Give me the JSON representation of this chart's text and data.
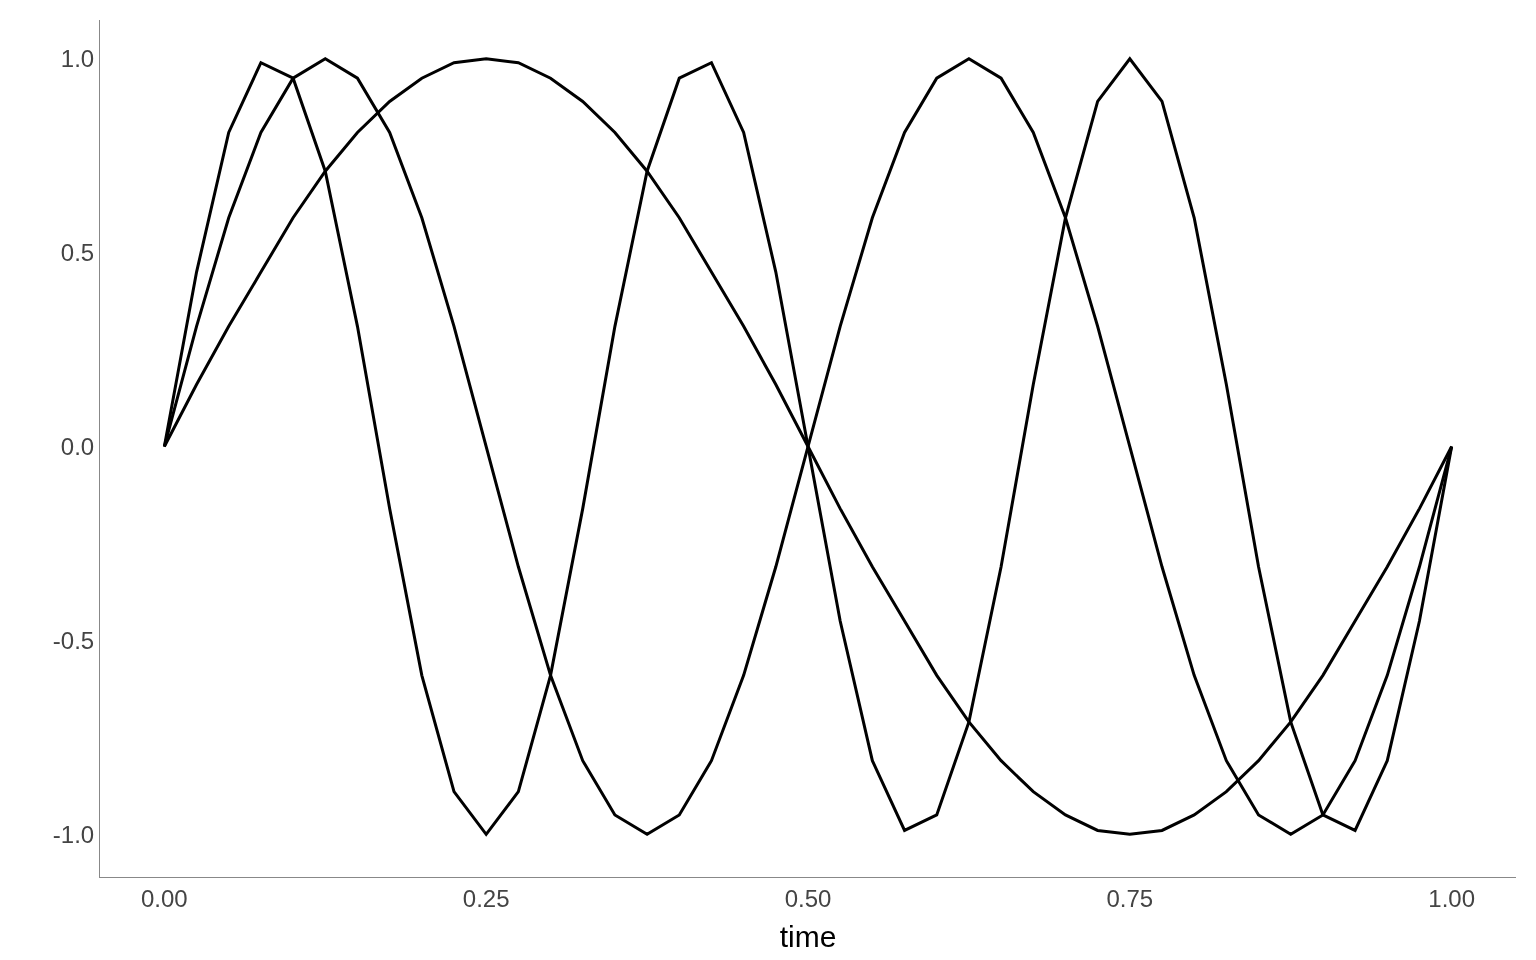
{
  "chart_data": {
    "type": "line",
    "xlabel": "time",
    "x": [
      0,
      0.025,
      0.05,
      0.075,
      0.1,
      0.125,
      0.15,
      0.175,
      0.2,
      0.225,
      0.25,
      0.275,
      0.3,
      0.325,
      0.35,
      0.375,
      0.4,
      0.425,
      0.45,
      0.475,
      0.5,
      0.525,
      0.55,
      0.575,
      0.6,
      0.625,
      0.65,
      0.675,
      0.7,
      0.725,
      0.75,
      0.775,
      0.8,
      0.825,
      0.85,
      0.875,
      0.9,
      0.925,
      0.95,
      0.975,
      1
    ],
    "series": [
      {
        "color": "#000000",
        "values": [
          0,
          0.16,
          0.31,
          0.45,
          0.59,
          0.71,
          0.81,
          0.89,
          0.95,
          0.99,
          1,
          0.99,
          0.95,
          0.89,
          0.81,
          0.71,
          0.59,
          0.45,
          0.31,
          0.16,
          0,
          -0.16,
          -0.31,
          -0.45,
          -0.59,
          -0.71,
          -0.81,
          -0.89,
          -0.95,
          -0.99,
          -1,
          -0.99,
          -0.95,
          -0.89,
          -0.81,
          -0.71,
          -0.59,
          -0.45,
          -0.31,
          -0.16,
          0
        ]
      },
      {
        "color": "#000000",
        "values": [
          0,
          0.31,
          0.59,
          0.81,
          0.95,
          1,
          0.95,
          0.81,
          0.59,
          0.31,
          0,
          -0.31,
          -0.59,
          -0.81,
          -0.95,
          -1,
          -0.95,
          -0.81,
          -0.59,
          -0.31,
          0,
          0.31,
          0.59,
          0.81,
          0.95,
          1,
          0.95,
          0.81,
          0.59,
          0.31,
          0,
          -0.31,
          -0.59,
          -0.81,
          -0.95,
          -1,
          -0.95,
          -0.81,
          -0.59,
          -0.31,
          0
        ]
      },
      {
        "color": "#000000",
        "values": [
          0,
          0.45,
          0.81,
          0.99,
          0.95,
          0.71,
          0.31,
          -0.16,
          -0.59,
          -0.89,
          -1,
          -0.89,
          -0.59,
          -0.16,
          0.31,
          0.71,
          0.95,
          0.99,
          0.81,
          0.45,
          0,
          -0.45,
          -0.81,
          -0.99,
          -0.95,
          -0.71,
          -0.31,
          0.16,
          0.59,
          0.89,
          1,
          0.89,
          0.59,
          0.16,
          -0.31,
          -0.71,
          -0.95,
          -0.99,
          -0.81,
          -0.45,
          0
        ]
      }
    ],
    "xlim": [
      -0.05,
      1.05
    ],
    "ylim": [
      -1.11,
      1.1
    ],
    "xticks": [
      {
        "value": 0,
        "label": "0.00"
      },
      0.25,
      {
        "value": 0.5,
        "label": "0.50"
      },
      0.75,
      {
        "value": 1,
        "label": "1.00"
      }
    ],
    "yticks": [
      {
        "value": -1,
        "label": "-1.0"
      },
      -0.5,
      {
        "value": 0,
        "label": "0.0"
      },
      0.5,
      {
        "value": 1,
        "label": "1.0"
      }
    ],
    "marker": "none",
    "line_style": "solid"
  }
}
